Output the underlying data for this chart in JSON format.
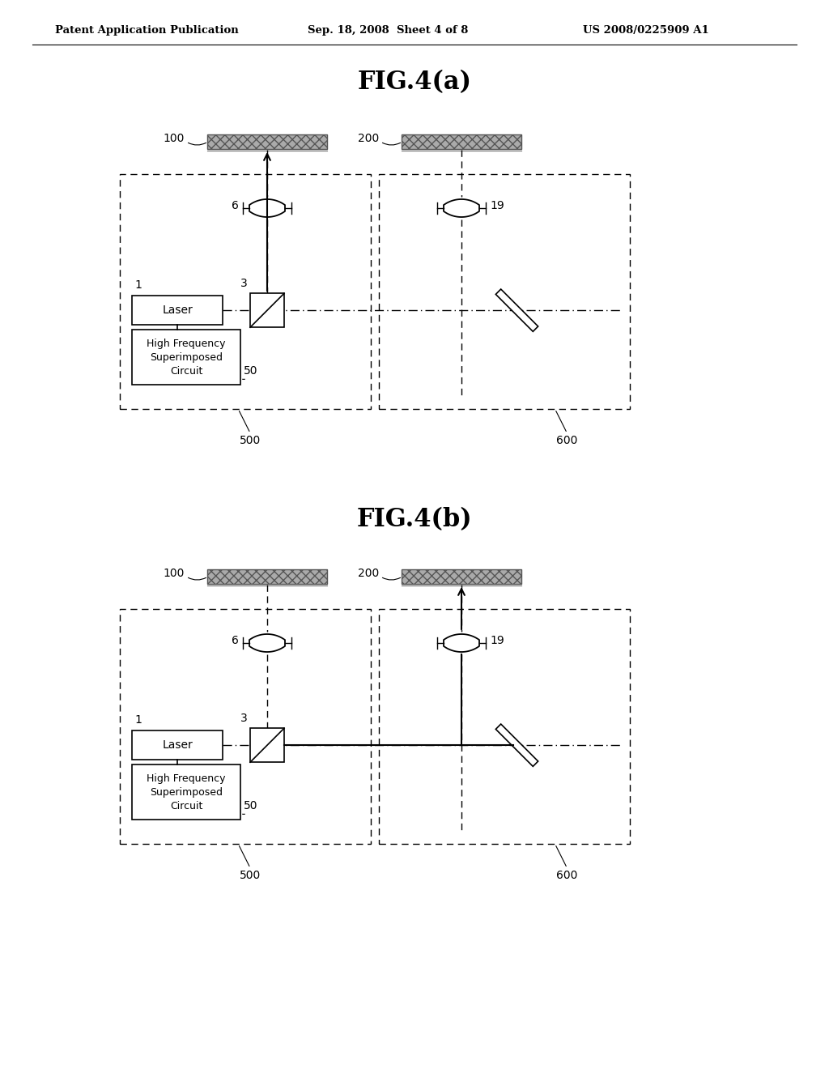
{
  "title_a": "FIG.4(a)",
  "title_b": "FIG.4(b)",
  "header_left": "Patent Application Publication",
  "header_center": "Sep. 18, 2008  Sheet 4 of 8",
  "header_right": "US 2008/0225909 A1",
  "bg_color": "#ffffff"
}
